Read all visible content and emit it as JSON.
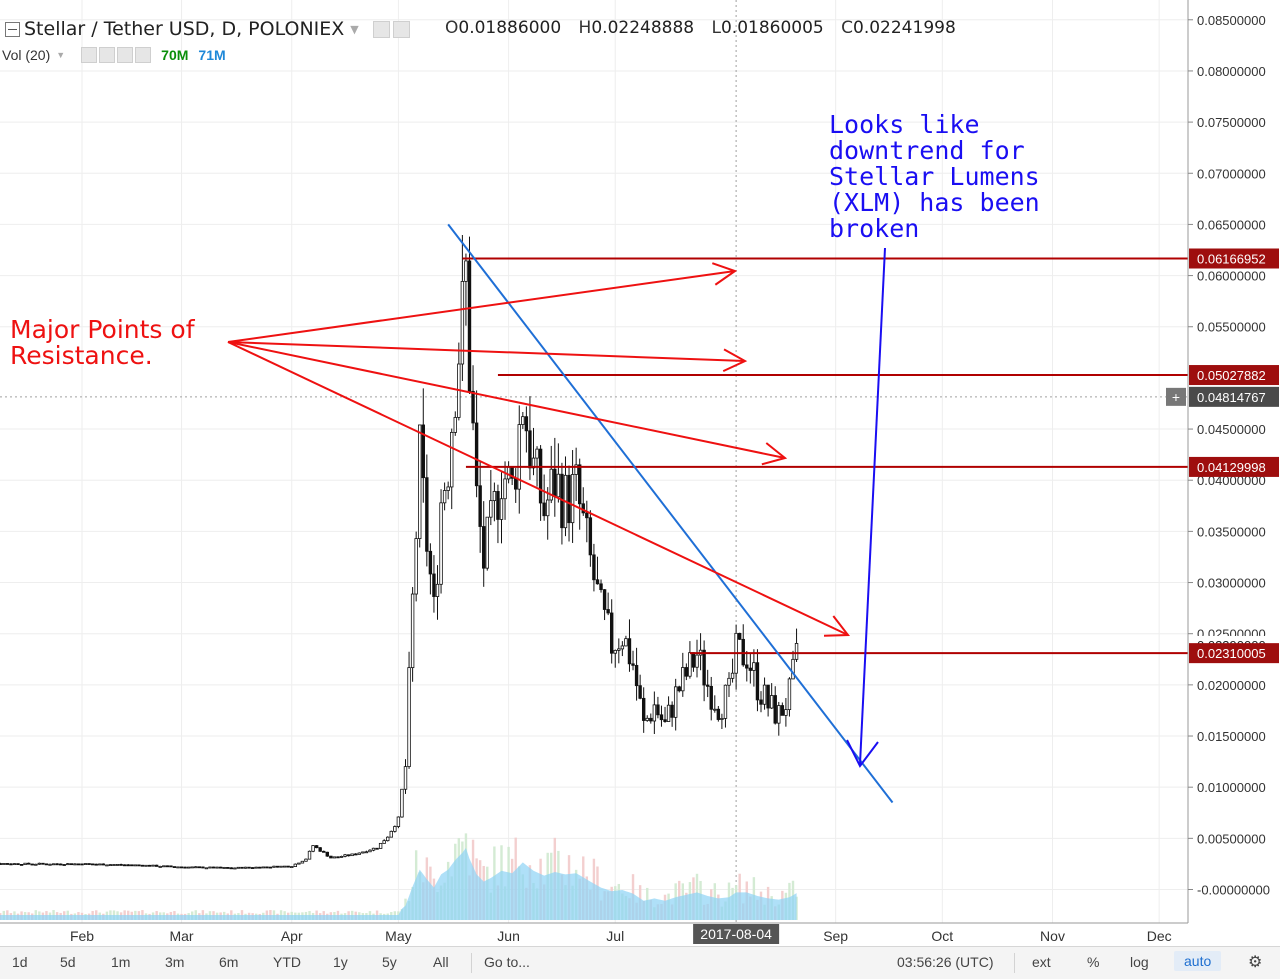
{
  "header": {
    "title": "Stellar / Tether USD, D, POLONIEX",
    "open_label": "O",
    "open": "0.01886000",
    "high_label": "H",
    "high": "0.02248888",
    "low_label": "L",
    "low": "0.01860005",
    "close_label": "C",
    "close": "0.02241998"
  },
  "volume": {
    "label": "Vol (20)",
    "value_a": "70M",
    "value_b": "71M"
  },
  "toolbar": {
    "ranges": [
      "1d",
      "5d",
      "1m",
      "3m",
      "6m",
      "YTD",
      "1y",
      "5y",
      "All"
    ],
    "goto": "Go to...",
    "time": "03:56:26 (UTC)",
    "ext": "ext",
    "percent": "%",
    "log": "log",
    "auto": "auto"
  },
  "colors": {
    "price_tag": "#9e0e0e",
    "resistance": "#b00000",
    "annotation_red": "#ee1111",
    "trendline": "#1f6fd6",
    "annotation_blue": "#1a0ef2",
    "volume_area": "#8dd3f5"
  },
  "chart_data": {
    "type": "candlestick",
    "axis": {
      "y_ticks": [
        "0.08500000",
        "0.08000000",
        "0.07500000",
        "0.07000000",
        "0.06500000",
        "0.06000000",
        "0.05500000",
        "0.04500000",
        "0.04000000",
        "0.03500000",
        "0.03000000",
        "0.02500000",
        "0.02000000",
        "0.01500000",
        "0.01000000",
        "0.00500000",
        "-0.00000000"
      ],
      "y_tick_values": [
        0.085,
        0.08,
        0.075,
        0.07,
        0.065,
        0.06,
        0.055,
        0.045,
        0.04,
        0.035,
        0.03,
        0.025,
        0.02,
        0.015,
        0.01,
        0.005,
        0
      ],
      "x_ticks": [
        "Feb",
        "Mar",
        "Apr",
        "May",
        "Jun",
        "Jul",
        "Sep",
        "Oct",
        "Nov",
        "Dec"
      ],
      "x_tick_dates": [
        "2017-02-01",
        "2017-03-01",
        "2017-04-01",
        "2017-05-01",
        "2017-06-01",
        "2017-07-01",
        "2017-09-01",
        "2017-10-01",
        "2017-11-01",
        "2017-12-01"
      ],
      "crosshair_date_label": "2017-08-04",
      "crosshair_price_label": "0.04814767",
      "crosshair_price": 0.04814767
    },
    "price_tags": [
      {
        "label": "0.06166952",
        "value": 0.06166952,
        "style": "red"
      },
      {
        "label": "0.05027882",
        "value": 0.05027882,
        "style": "red"
      },
      {
        "label": "0.04129998",
        "value": 0.04129998,
        "style": "red"
      },
      {
        "label": "0.02390000",
        "value": 0.0239,
        "style": "plain"
      },
      {
        "label": "0.02310005",
        "value": 0.02310005,
        "style": "red"
      }
    ],
    "resistance_lines": [
      {
        "value": 0.06166952,
        "from": "2017-05-19",
        "to": "2017-12-31"
      },
      {
        "value": 0.05027882,
        "from": "2017-05-29",
        "to": "2017-12-31"
      },
      {
        "value": 0.04129998,
        "from": "2017-05-20",
        "to": "2017-12-31"
      },
      {
        "value": 0.02310005,
        "from": "2017-07-22",
        "to": "2017-12-31"
      }
    ],
    "trendline": {
      "from": {
        "date": "2017-05-15",
        "value": 0.065
      },
      "to": {
        "date": "2017-09-17",
        "value": 0.0085
      }
    },
    "annotations": [
      {
        "text": "Major Points of Resistance.",
        "lines": [
          "Major Points of",
          "Resistance."
        ]
      },
      {
        "text": "Looks like downtrend for Stellar Lumens (XLM) has been broken",
        "lines": [
          "Looks like",
          "downtrend for",
          "Stellar Lumens",
          "(XLM) has been",
          "broken"
        ]
      }
    ],
    "series_close": [
      [
        "2017-01-01",
        0.0026
      ],
      [
        "2017-01-15",
        0.0025
      ],
      [
        "2017-02-01",
        0.0025
      ],
      [
        "2017-02-15",
        0.0024
      ],
      [
        "2017-03-01",
        0.0022
      ],
      [
        "2017-03-15",
        0.0021
      ],
      [
        "2017-03-25",
        0.0022
      ],
      [
        "2017-04-01",
        0.0023
      ],
      [
        "2017-04-05",
        0.003
      ],
      [
        "2017-04-07",
        0.0043
      ],
      [
        "2017-04-12",
        0.0031
      ],
      [
        "2017-04-18",
        0.0034
      ],
      [
        "2017-04-25",
        0.0041
      ],
      [
        "2017-04-28",
        0.0052
      ],
      [
        "2017-05-01",
        0.0069
      ],
      [
        "2017-05-03",
        0.012
      ],
      [
        "2017-05-05",
        0.028
      ],
      [
        "2017-05-07",
        0.042
      ],
      [
        "2017-05-09",
        0.034
      ],
      [
        "2017-05-11",
        0.027
      ],
      [
        "2017-05-13",
        0.038
      ],
      [
        "2017-05-15",
        0.042
      ],
      [
        "2017-05-17",
        0.05
      ],
      [
        "2017-05-19",
        0.056
      ],
      [
        "2017-05-20",
        0.06
      ],
      [
        "2017-05-21",
        0.051
      ],
      [
        "2017-05-23",
        0.038
      ],
      [
        "2017-05-25",
        0.032
      ],
      [
        "2017-05-27",
        0.035
      ],
      [
        "2017-05-30",
        0.041
      ],
      [
        "2017-06-02",
        0.039
      ],
      [
        "2017-06-05",
        0.048
      ],
      [
        "2017-06-08",
        0.041
      ],
      [
        "2017-06-11",
        0.037
      ],
      [
        "2017-06-14",
        0.04
      ],
      [
        "2017-06-17",
        0.038
      ],
      [
        "2017-06-20",
        0.039
      ],
      [
        "2017-06-24",
        0.032
      ],
      [
        "2017-06-27",
        0.027
      ],
      [
        "2017-06-30",
        0.024
      ],
      [
        "2017-07-03",
        0.025
      ],
      [
        "2017-07-06",
        0.022
      ],
      [
        "2017-07-09",
        0.016
      ],
      [
        "2017-07-12",
        0.018
      ],
      [
        "2017-07-15",
        0.016
      ],
      [
        "2017-07-18",
        0.019
      ],
      [
        "2017-07-21",
        0.021
      ],
      [
        "2017-07-24",
        0.023
      ],
      [
        "2017-07-27",
        0.02
      ],
      [
        "2017-07-30",
        0.018
      ],
      [
        "2017-08-02",
        0.019
      ],
      [
        "2017-08-04",
        0.023
      ],
      [
        "2017-08-07",
        0.023
      ],
      [
        "2017-08-10",
        0.02
      ],
      [
        "2017-08-13",
        0.018
      ],
      [
        "2017-08-16",
        0.017
      ],
      [
        "2017-08-19",
        0.019
      ],
      [
        "2017-08-21",
        0.0224
      ]
    ]
  }
}
